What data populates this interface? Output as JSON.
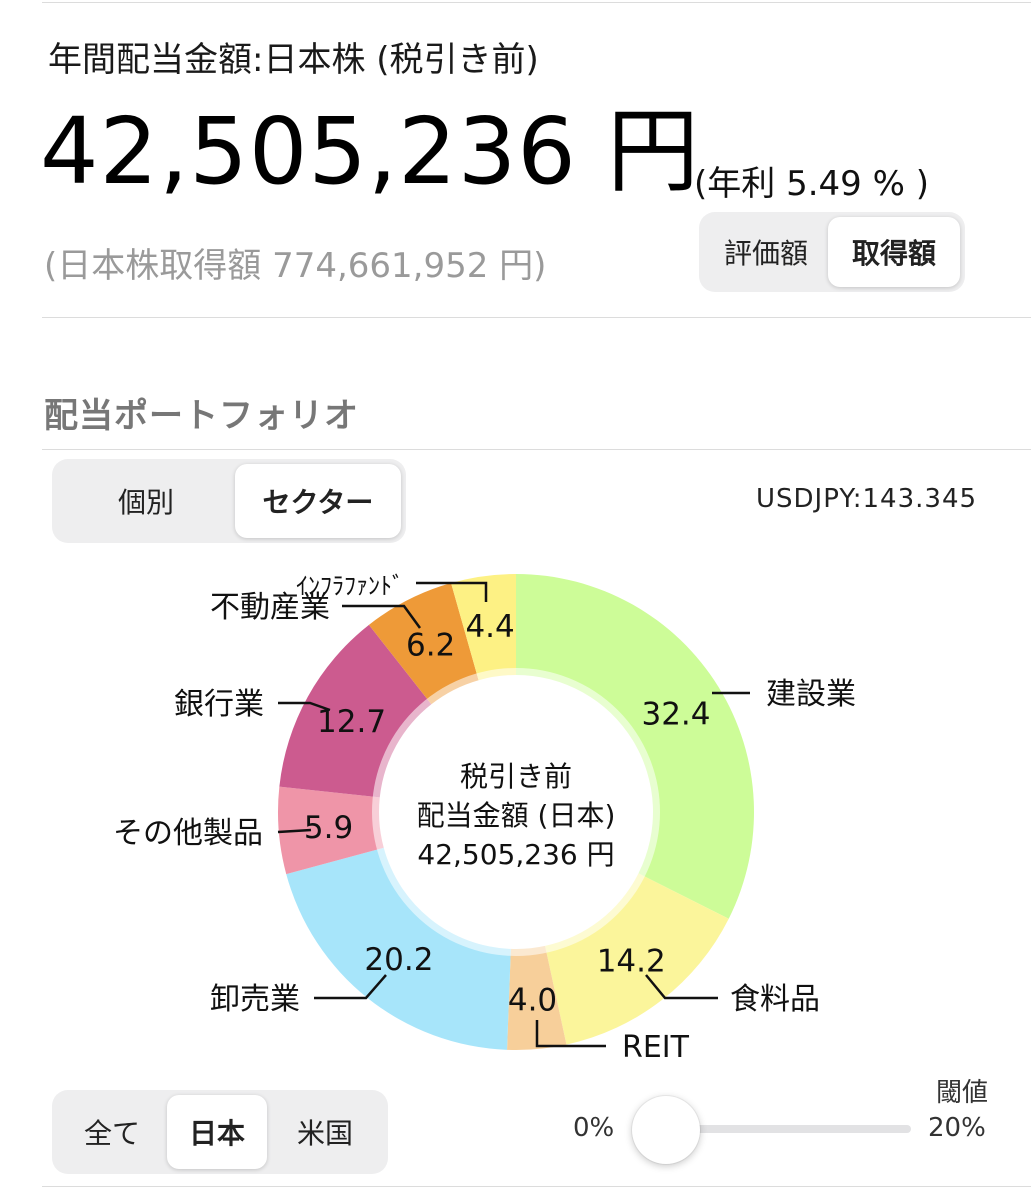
{
  "header": {
    "title": "年間配当金額:日本株 (税引き前)",
    "amount": "42,505,236 円",
    "annual_rate": "(年利 5.49 % )",
    "acquisition": "(日本株取得額 774,661,952 円)"
  },
  "basis_toggle": {
    "options": [
      "評価額",
      "取得額"
    ],
    "selected": "取得額"
  },
  "section_title": "配当ポートフォリオ",
  "view_toggle": {
    "options": [
      "個別",
      "セクター"
    ],
    "selected": "セクター"
  },
  "fx_rate": "USDJPY:143.345",
  "chart_data": {
    "type": "pie",
    "style": "donut",
    "center_text": [
      "税引き前",
      "配当金額 (日本)",
      "42,505,236 円"
    ],
    "unit": "%",
    "slices": [
      {
        "label": "建設業",
        "value": 32.4,
        "color": "#cdfc98"
      },
      {
        "label": "食料品",
        "value": 14.2,
        "color": "#fbf59b"
      },
      {
        "label": "REIT",
        "value": 4.0,
        "color": "#f7cf9a"
      },
      {
        "label": "卸売業",
        "value": 20.2,
        "color": "#a7e5fa"
      },
      {
        "label": "その他製品",
        "value": 5.9,
        "color": "#ef95a8"
      },
      {
        "label": "銀行業",
        "value": 12.7,
        "color": "#cc5b8f"
      },
      {
        "label": "不動産業",
        "value": 6.2,
        "color": "#ee9a38"
      },
      {
        "label": "ｲﾝﾌﾗﾌｧﾝﾄﾞ",
        "value": 4.4,
        "color": "#fdf184"
      }
    ]
  },
  "region_toggle": {
    "options": [
      "全て",
      "日本",
      "米国"
    ],
    "selected": "日本"
  },
  "threshold_slider": {
    "label": "閾値",
    "min_label": "0%",
    "max_label": "20%",
    "value": 0
  }
}
